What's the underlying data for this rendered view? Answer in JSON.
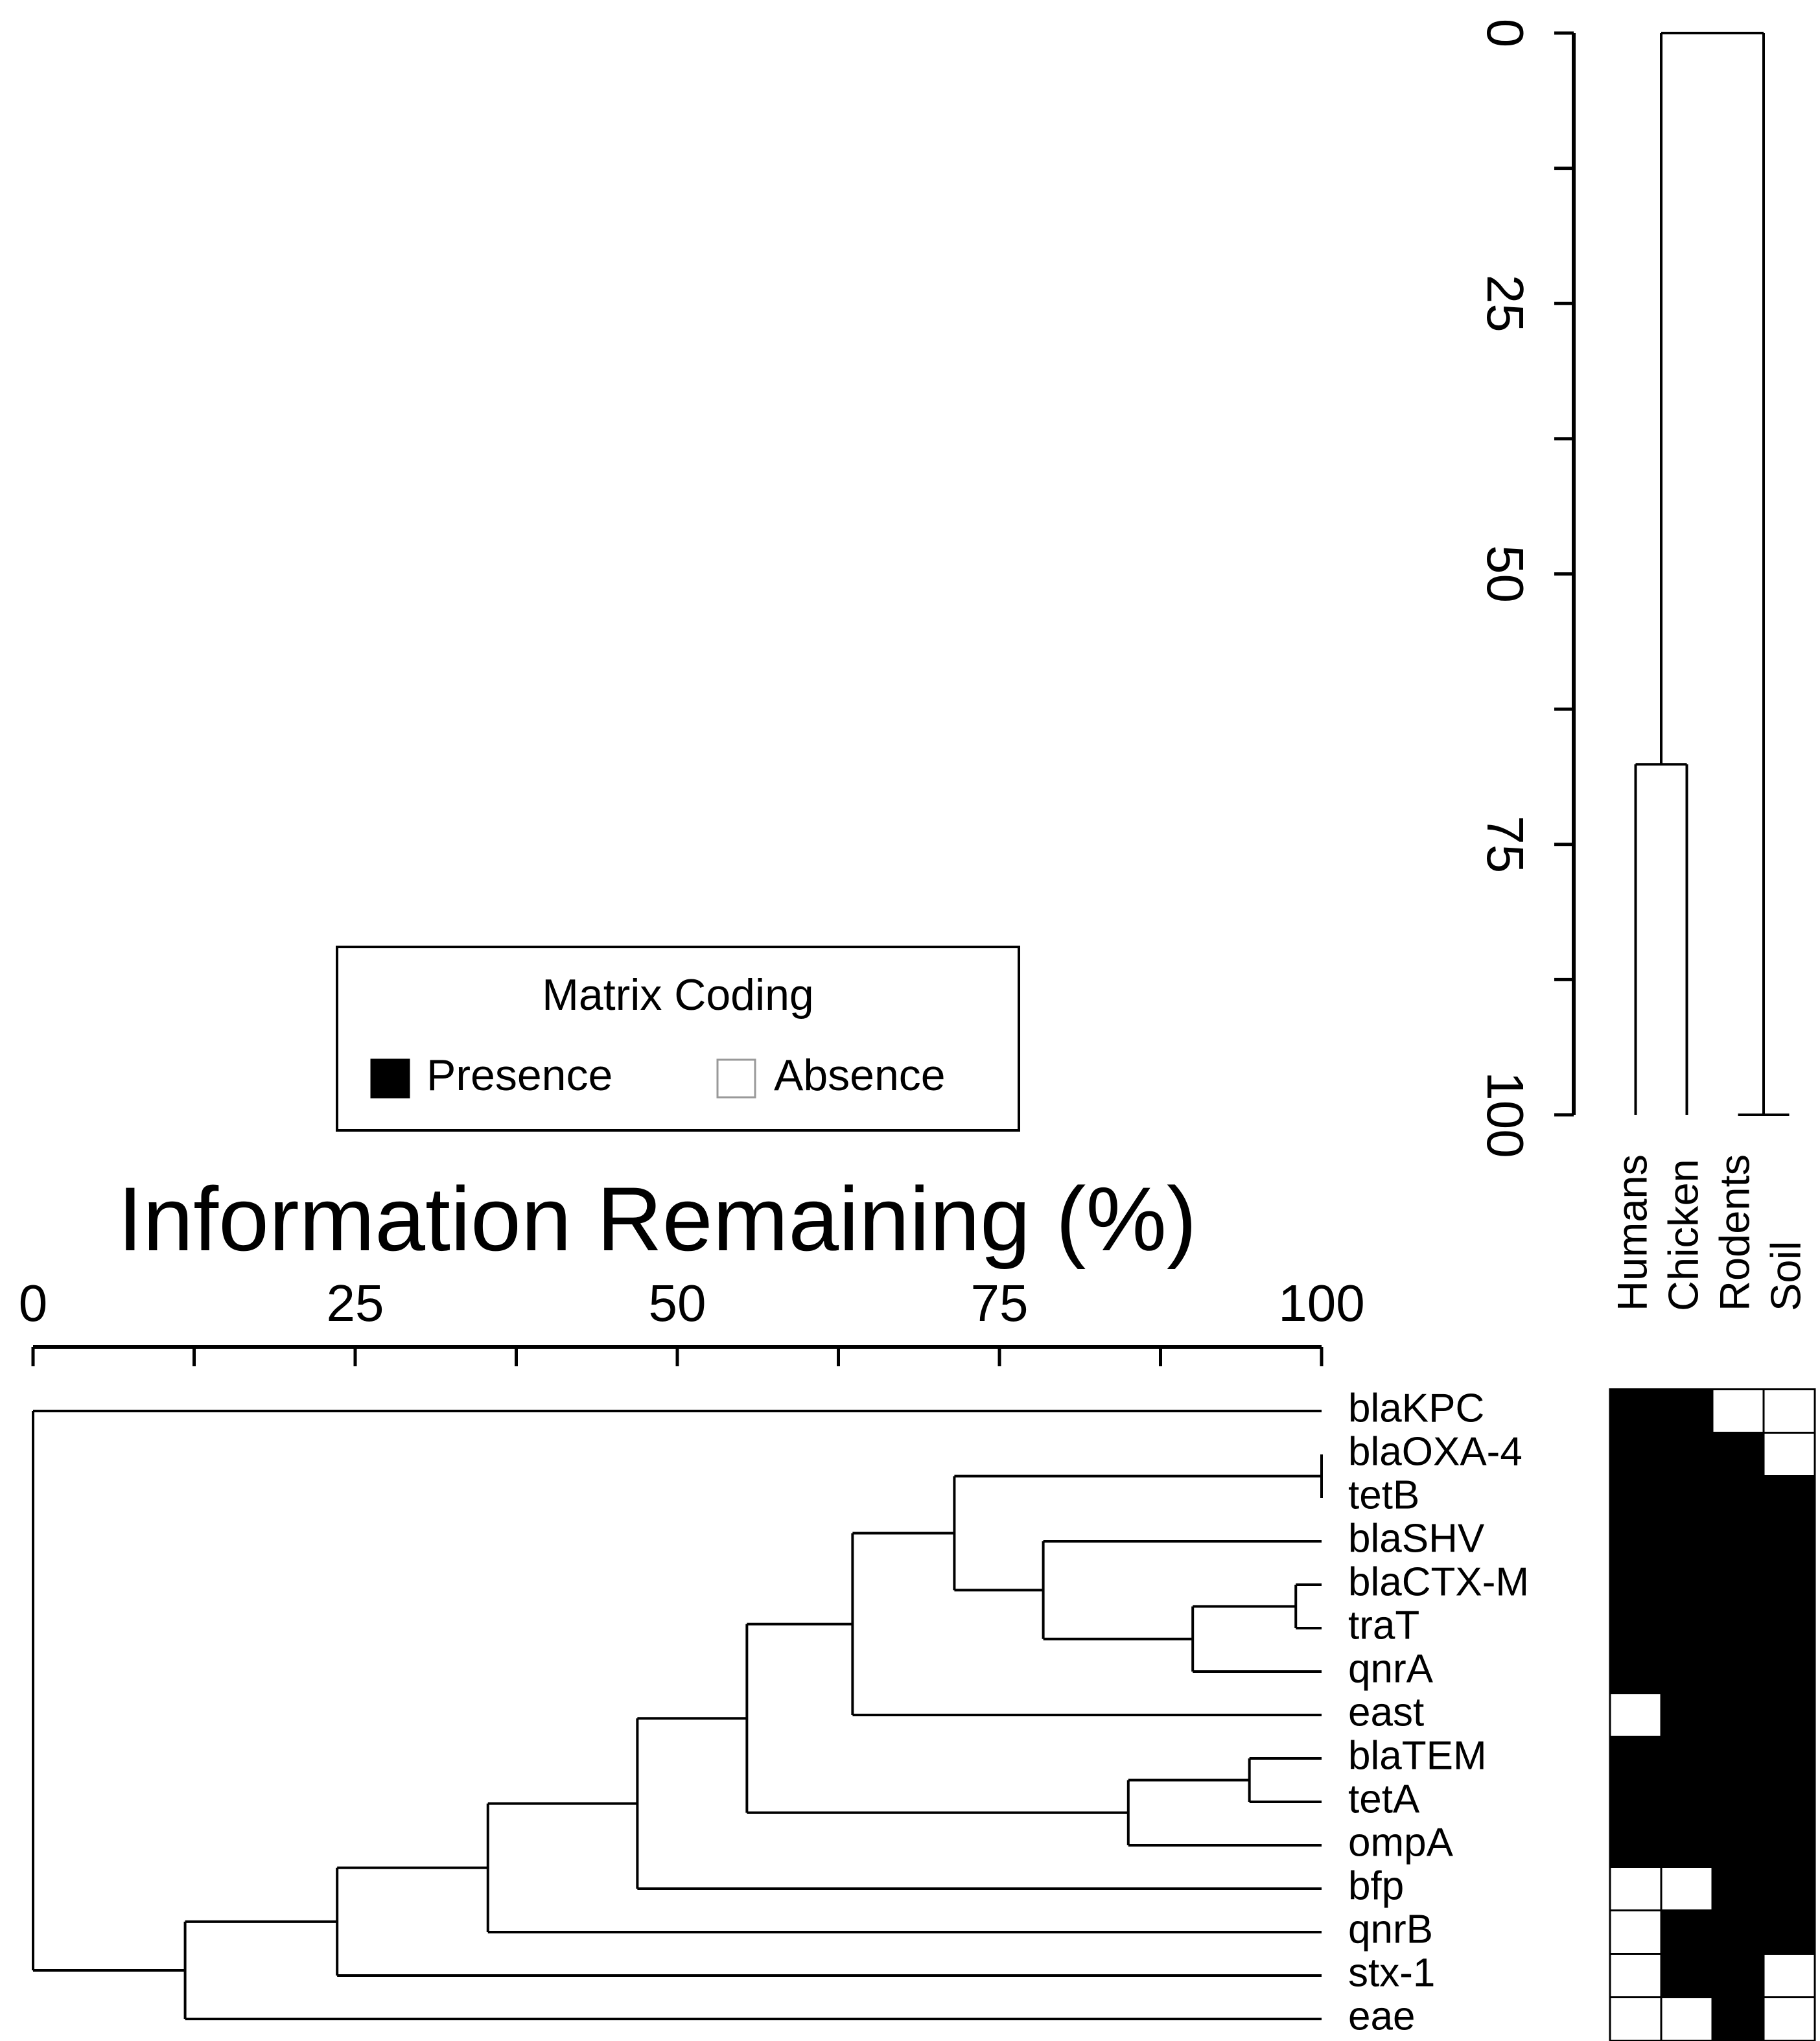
{
  "chart_data": {
    "type": "dendrogram-heatmap",
    "legend": {
      "title": "Matrix Coding",
      "entries": [
        {
          "name": "Presence",
          "color": "#000000"
        },
        {
          "name": "Absence",
          "color": "#ffffff"
        }
      ]
    },
    "row_tree": {
      "xlabel": "Information Remaining (%)",
      "xlim": [
        0,
        100
      ],
      "xticks": [
        0,
        25,
        50,
        75,
        100
      ],
      "tree": {
        "height": 0,
        "children": [
          {
            "name": "blaKPC",
            "matrix": [
              1,
              1,
              0,
              0
            ]
          },
          {
            "height": 11.8,
            "children": [
              {
                "height": 23.6,
                "children": [
                  {
                    "height": 35.3,
                    "children": [
                      {
                        "height": 46.9,
                        "children": [
                          {
                            "height": 55.4,
                            "children": [
                              {
                                "height": 63.6,
                                "children": [
                                  {
                                    "height": 71.5,
                                    "children": [
                                      {
                                        "height": 100,
                                        "children": [
                                          {
                                            "name": "blaOXA-4",
                                            "matrix": [
                                              1,
                                              1,
                                              1,
                                              0
                                            ]
                                          },
                                          {
                                            "name": "tetB",
                                            "matrix": [
                                              1,
                                              1,
                                              1,
                                              1
                                            ]
                                          }
                                        ]
                                      },
                                      {
                                        "height": 78.4,
                                        "children": [
                                          {
                                            "name": "blaSHV",
                                            "matrix": [
                                              1,
                                              1,
                                              1,
                                              1
                                            ]
                                          },
                                          {
                                            "height": 90,
                                            "children": [
                                              {
                                                "height": 98,
                                                "children": [
                                                  {
                                                    "name": "blaCTX-M",
                                                    "matrix": [
                                                      1,
                                                      1,
                                                      1,
                                                      1
                                                    ]
                                                  },
                                                  {
                                                    "name": "traT",
                                                    "matrix": [
                                                      1,
                                                      1,
                                                      1,
                                                      1
                                                    ]
                                                  }
                                                ]
                                              },
                                              {
                                                "name": "qnrA",
                                                "matrix": [
                                                  1,
                                                  1,
                                                  1,
                                                  1
                                                ]
                                              }
                                            ]
                                          }
                                        ]
                                      }
                                    ]
                                  },
                                  {
                                    "name": "east",
                                    "matrix": [
                                      0,
                                      1,
                                      1,
                                      1
                                    ]
                                  }
                                ]
                              },
                              {
                                "height": 85,
                                "children": [
                                  {
                                    "height": 94.4,
                                    "children": [
                                      {
                                        "name": "blaTEM",
                                        "matrix": [
                                          1,
                                          1,
                                          1,
                                          1
                                        ]
                                      },
                                      {
                                        "name": "tetA",
                                        "matrix": [
                                          1,
                                          1,
                                          1,
                                          1
                                        ]
                                      }
                                    ]
                                  },
                                  {
                                    "name": "ompA",
                                    "matrix": [
                                      1,
                                      1,
                                      1,
                                      1
                                    ]
                                  }
                                ]
                              }
                            ]
                          },
                          {
                            "name": "bfp",
                            "matrix": [
                              0,
                              0,
                              1,
                              1
                            ]
                          }
                        ]
                      },
                      {
                        "name": "qnrB",
                        "matrix": [
                          0,
                          1,
                          1,
                          1
                        ]
                      }
                    ]
                  },
                  {
                    "name": "stx-1",
                    "matrix": [
                      0,
                      1,
                      1,
                      0
                    ]
                  }
                ]
              },
              {
                "name": "eae",
                "matrix": [
                  0,
                  0,
                  1,
                  0
                ]
              }
            ]
          }
        ]
      }
    },
    "column_tree": {
      "ylim": [
        0,
        100
      ],
      "yticks": [
        0,
        25,
        50,
        75,
        100
      ],
      "tree": {
        "height": 0,
        "children": [
          {
            "height": 67.6,
            "children": [
              {
                "name": "Humans"
              },
              {
                "name": "Chicken"
              }
            ]
          },
          {
            "height": 100,
            "children": [
              {
                "name": "Rodents"
              },
              {
                "name": "Soil"
              }
            ]
          }
        ]
      }
    }
  }
}
